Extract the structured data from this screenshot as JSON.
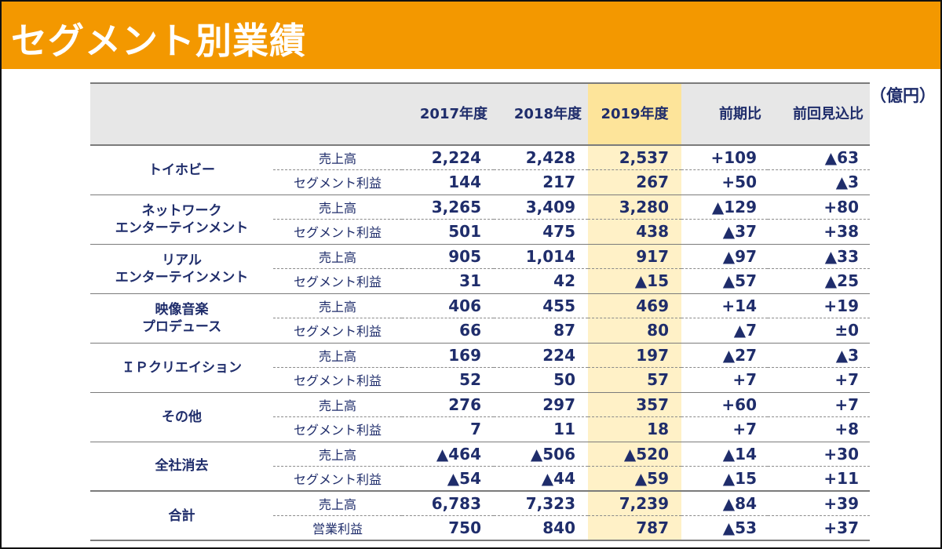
{
  "title": "セグメント別業績",
  "unit_label": "（億円）",
  "columns": [
    "2017年度",
    "2018年度",
    "2019年度",
    "前期比",
    "前回見込比"
  ],
  "rows": [
    {
      "segment": [
        "トイホビー"
      ],
      "metrics": [
        {
          "label": "売上高",
          "values": [
            "2,224",
            "2,428",
            "2,537",
            "+109",
            "▲63"
          ]
        },
        {
          "label": "セグメント利益",
          "values": [
            "144",
            "217",
            "267",
            "+50",
            "▲3"
          ]
        }
      ]
    },
    {
      "segment": [
        "ネットワーク",
        "エンターテインメント"
      ],
      "metrics": [
        {
          "label": "売上高",
          "values": [
            "3,265",
            "3,409",
            "3,280",
            "▲129",
            "+80"
          ]
        },
        {
          "label": "セグメント利益",
          "values": [
            "501",
            "475",
            "438",
            "▲37",
            "+38"
          ]
        }
      ]
    },
    {
      "segment": [
        "リアル",
        "エンターテインメント"
      ],
      "metrics": [
        {
          "label": "売上高",
          "values": [
            "905",
            "1,014",
            "917",
            "▲97",
            "▲33"
          ]
        },
        {
          "label": "セグメント利益",
          "values": [
            "31",
            "42",
            "▲15",
            "▲57",
            "▲25"
          ]
        }
      ]
    },
    {
      "segment": [
        "映像音楽",
        "プロデュース"
      ],
      "metrics": [
        {
          "label": "売上高",
          "values": [
            "406",
            "455",
            "469",
            "+14",
            "+19"
          ]
        },
        {
          "label": "セグメント利益",
          "values": [
            "66",
            "87",
            "80",
            "▲7",
            "±0"
          ]
        }
      ]
    },
    {
      "segment": [
        "ＩＰクリエイション"
      ],
      "metrics": [
        {
          "label": "売上高",
          "values": [
            "169",
            "224",
            "197",
            "▲27",
            "▲3"
          ]
        },
        {
          "label": "セグメント利益",
          "values": [
            "52",
            "50",
            "57",
            "+7",
            "+7"
          ]
        }
      ]
    },
    {
      "segment": [
        "その他"
      ],
      "metrics": [
        {
          "label": "売上高",
          "values": [
            "276",
            "297",
            "357",
            "+60",
            "+7"
          ]
        },
        {
          "label": "セグメント利益",
          "values": [
            "7",
            "11",
            "18",
            "+7",
            "+8"
          ]
        }
      ]
    },
    {
      "segment": [
        "全社消去"
      ],
      "metrics": [
        {
          "label": "売上高",
          "values": [
            "▲464",
            "▲506",
            "▲520",
            "▲14",
            "+30"
          ]
        },
        {
          "label": "セグメント利益",
          "values": [
            "▲54",
            "▲44",
            "▲59",
            "▲15",
            "+11"
          ]
        }
      ]
    },
    {
      "segment": [
        "合計"
      ],
      "metrics": [
        {
          "label": "売上高",
          "values": [
            "6,783",
            "7,323",
            "7,239",
            "▲84",
            "+39"
          ]
        },
        {
          "label": "営業利益",
          "values": [
            "750",
            "840",
            "787",
            "▲53",
            "+37"
          ]
        }
      ]
    }
  ]
}
